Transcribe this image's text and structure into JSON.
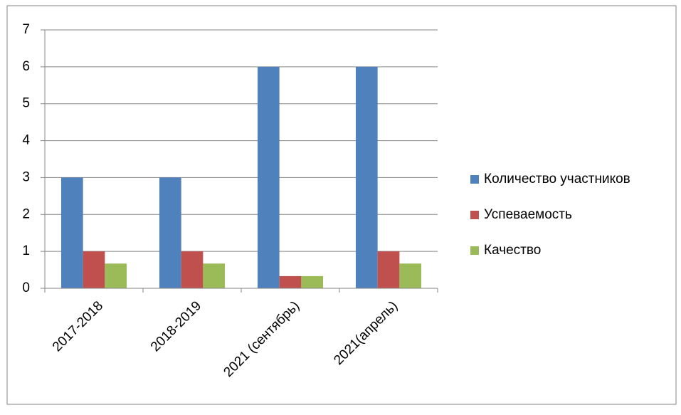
{
  "chart_data": {
    "type": "bar",
    "categories": [
      "2017-2018",
      "2018-2019",
      "2021 (сентябрь)",
      "2021(апрель)"
    ],
    "series": [
      {
        "name": "Количество участников",
        "color": "#4f81bd",
        "values": [
          3,
          3,
          6,
          6
        ]
      },
      {
        "name": "Успеваемость",
        "color": "#c0504d",
        "values": [
          1,
          1,
          0.33,
          1
        ]
      },
      {
        "name": "Качество",
        "color": "#9bbb59",
        "values": [
          0.67,
          0.67,
          0.33,
          0.67
        ]
      }
    ],
    "ylim": [
      0,
      7
    ],
    "yticks": [
      0,
      1,
      2,
      3,
      4,
      5,
      6,
      7
    ],
    "grid": true,
    "legend": "right"
  }
}
